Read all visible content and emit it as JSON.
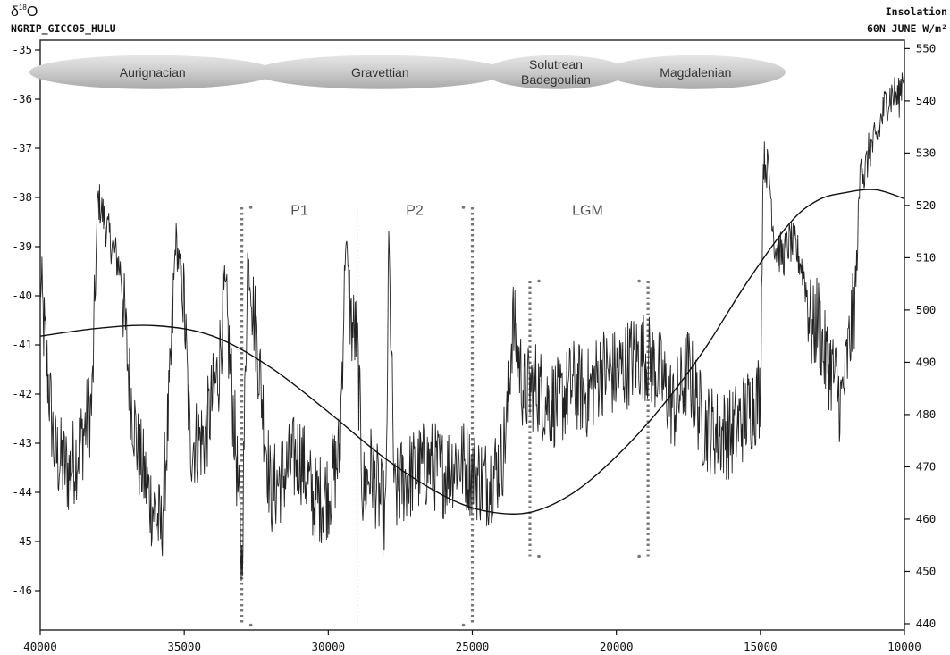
{
  "chart_data": {
    "type": "line",
    "title": "",
    "left_axis": {
      "label": "δ18O",
      "label_main": "δ",
      "label_sup": "18",
      "label_tail": "O",
      "sublabel": "NGRIP_GICC05_HULU",
      "range": [
        -46.8,
        -34.8
      ],
      "ticks": [
        -35,
        -36,
        -37,
        -38,
        -39,
        -40,
        -41,
        -42,
        -43,
        -44,
        -45,
        -46
      ],
      "tick_labels": [
        "-35",
        "-36",
        "-37",
        "-38",
        "-39",
        "-40",
        "-41",
        "-42",
        "-43",
        "-44",
        "-45",
        "-46"
      ]
    },
    "right_axis": {
      "label_line1": "Insolation",
      "label_line2": "60N JUNE W/m²",
      "range": [
        438.8,
        551.6
      ],
      "ticks": [
        440,
        450,
        460,
        470,
        480,
        490,
        500,
        510,
        520,
        530,
        540,
        550
      ],
      "tick_labels": [
        "440",
        "450",
        "460",
        "470",
        "480",
        "490",
        "500",
        "510",
        "520",
        "530",
        "540",
        "550"
      ]
    },
    "x_axis": {
      "label": "",
      "range": [
        40000,
        10000
      ],
      "reversed": true,
      "ticks": [
        40000,
        35000,
        30000,
        25000,
        20000,
        15000,
        10000
      ],
      "tick_labels": [
        "40000",
        "35000",
        "30000",
        "25000",
        "20000",
        "15000",
        "10000"
      ]
    },
    "grid": false,
    "series": [
      {
        "axis": "left",
        "style": "noisy-line",
        "x": [
          40000,
          39800,
          39500,
          39000,
          38600,
          38200,
          38000,
          37600,
          37200,
          36900,
          36600,
          36200,
          35800,
          35500,
          35300,
          35000,
          34800,
          34300,
          33800,
          33600,
          33200,
          33000,
          32800,
          32500,
          32000,
          31500,
          31000,
          30500,
          30000,
          29600,
          29400,
          29200,
          29000,
          28800,
          28500,
          28000,
          27900,
          27700,
          27500,
          27000,
          26500,
          26000,
          25500,
          25000,
          24500,
          24000,
          23800,
          23600,
          23200,
          22800,
          22500,
          22000,
          21500,
          21000,
          20500,
          20000,
          19500,
          19000,
          18500,
          18000,
          17500,
          17000,
          16500,
          16000,
          15500,
          15000,
          14900,
          14700,
          14500,
          14200,
          14000,
          13800,
          13500,
          13200,
          13000,
          12800,
          12500,
          12200,
          12000,
          11700,
          11500,
          11400,
          11200,
          11000,
          10800,
          10600,
          10400,
          10200,
          10000
        ],
        "y": [
          -39.7,
          -41.2,
          -43.2,
          -43.6,
          -43.0,
          -42.2,
          -38.0,
          -38.8,
          -39.5,
          -41.8,
          -43.2,
          -44.1,
          -44.8,
          -42.0,
          -38.8,
          -40.2,
          -43.0,
          -42.9,
          -41.5,
          -39.8,
          -43.2,
          -45.5,
          -39.2,
          -40.8,
          -44.0,
          -43.6,
          -43.2,
          -44.2,
          -44.0,
          -43.2,
          -38.8,
          -40.6,
          -40.9,
          -44.0,
          -43.5,
          -44.6,
          -38.8,
          -44.2,
          -43.8,
          -43.6,
          -43.4,
          -43.6,
          -43.3,
          -43.6,
          -43.8,
          -43.4,
          -42.6,
          -40.5,
          -42.0,
          -41.8,
          -42.1,
          -42.2,
          -41.8,
          -42.0,
          -41.5,
          -41.6,
          -41.3,
          -41.2,
          -41.6,
          -42.3,
          -41.5,
          -42.6,
          -42.8,
          -42.8,
          -42.4,
          -42.0,
          -37.2,
          -37.5,
          -39.0,
          -39.2,
          -38.9,
          -39.0,
          -39.5,
          -40.8,
          -40.4,
          -41.2,
          -41.5,
          -42.2,
          -41.4,
          -40.0,
          -37.0,
          -37.6,
          -37.0,
          -36.9,
          -36.4,
          -36.0,
          -35.9,
          -36.0,
          -35.3
        ]
      },
      {
        "axis": "right",
        "style": "smooth-line",
        "x": [
          40000,
          38000,
          36000,
          34000,
          32000,
          30000,
          28000,
          26000,
          24500,
          23000,
          21500,
          20000,
          18500,
          17000,
          15500,
          14000,
          13000,
          12000,
          11000,
          10000
        ],
        "y": [
          495.0,
          496.5,
          497.0,
          495.0,
          489.0,
          480.5,
          471.5,
          464.5,
          461.5,
          461.3,
          465.0,
          472.0,
          481.0,
          492.0,
          505.0,
          516.5,
          521.0,
          522.5,
          523.0,
          521.3
        ]
      }
    ],
    "annotations": {
      "cultures": [
        {
          "label": "Aurignacian",
          "label2": "",
          "x_start": 40000,
          "x_end": 32200
        },
        {
          "label": "Gravettian",
          "label2": "",
          "x_start": 32200,
          "x_end": 24200
        },
        {
          "label": "Solutrean",
          "label2": "Badegoulian",
          "x_start": 24200,
          "x_end": 20000
        },
        {
          "label": "Magdalenian",
          "label2": "",
          "x_start": 20000,
          "x_end": 14500
        }
      ],
      "periods": [
        {
          "label": "P1",
          "x_at": 31000
        },
        {
          "label": "P2",
          "x_at": 27000
        },
        {
          "label": "LGM",
          "x_at": 21000
        }
      ],
      "boundaries": [
        {
          "style": "dotted-bracket",
          "side": "open-right",
          "x": 33000,
          "y_top": -38.2,
          "y_bottom": -46.7
        },
        {
          "style": "thin-dashed",
          "x": 29000,
          "y_top": -38.2,
          "y_bottom": -46.7
        },
        {
          "style": "dotted-bracket",
          "side": "open-left",
          "x": 25000,
          "y_top": -38.2,
          "y_bottom": -46.7
        },
        {
          "style": "dotted-bracket",
          "side": "open-right",
          "x": 23000,
          "y_top": -39.7,
          "y_bottom": -45.3
        },
        {
          "style": "dotted-bracket",
          "side": "open-left",
          "x": 18900,
          "y_top": -39.7,
          "y_bottom": -45.3
        }
      ]
    }
  }
}
